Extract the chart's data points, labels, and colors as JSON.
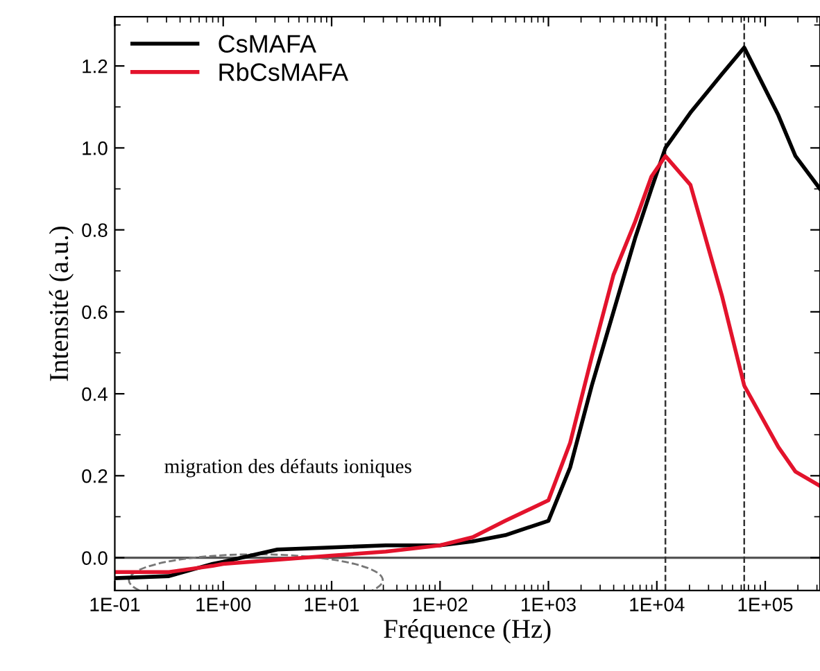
{
  "chart_data": {
    "type": "line",
    "xlabel": "Fréquence (Hz)",
    "ylabel": "Intensité (a.u.)",
    "log": "x",
    "xlim": [
      0.1,
      320000
    ],
    "ylim": [
      -0.08,
      1.32
    ],
    "xticks": [
      {
        "value": 0.1,
        "label": "1E-01"
      },
      {
        "value": 1,
        "label": "1E+00"
      },
      {
        "value": 10,
        "label": "1E+01"
      },
      {
        "value": 100,
        "label": "1E+02"
      },
      {
        "value": 1000,
        "label": "1E+03"
      },
      {
        "value": 10000,
        "label": "1E+04"
      },
      {
        "value": 100000,
        "label": "1E+05"
      }
    ],
    "yticks": [
      {
        "value": 0,
        "label": "0.0"
      },
      0.2,
      0.4,
      0.6,
      0.8,
      {
        "value": 1,
        "label": "1.0"
      },
      1.2
    ],
    "x": [
      0.1,
      0.316,
      0.8,
      1,
      3.16,
      10,
      31.6,
      100,
      200,
      400,
      1000,
      1585,
      2512,
      3981,
      6310,
      8913,
      12000,
      20400,
      39800,
      64000,
      132000,
      190000,
      320000
    ],
    "series": [
      {
        "name": "CsMAFA",
        "color": "#000000",
        "values": [
          -0.05,
          -0.045,
          -0.015,
          -0.01,
          0.02,
          0.025,
          0.03,
          0.03,
          0.04,
          0.055,
          0.09,
          0.22,
          0.42,
          0.6,
          0.78,
          0.9,
          1.0,
          1.086,
          1.18,
          1.245,
          1.08,
          0.98,
          0.9
        ]
      },
      {
        "name": "RbCsMAFA",
        "color": "#e3132c",
        "values": [
          -0.035,
          -0.035,
          -0.02,
          -0.015,
          -0.005,
          0.005,
          0.015,
          0.03,
          0.05,
          0.09,
          0.14,
          0.28,
          0.49,
          0.69,
          0.82,
          0.93,
          0.98,
          0.91,
          0.64,
          0.42,
          0.27,
          0.21,
          0.175
        ]
      }
    ],
    "ref_lines": [
      {
        "axis": "y",
        "value": 0,
        "color": "#555555",
        "line_style": "solid"
      },
      {
        "axis": "x",
        "value": 12000,
        "color": "#333333",
        "line_style": "dashed"
      },
      {
        "axis": "x",
        "value": 64000,
        "color": "#333333",
        "line_style": "dashed"
      }
    ],
    "annotations": [
      "migration des défauts ioniques"
    ],
    "legend": "top left",
    "marker": "none",
    "line_style": "solid",
    "grid": false
  }
}
